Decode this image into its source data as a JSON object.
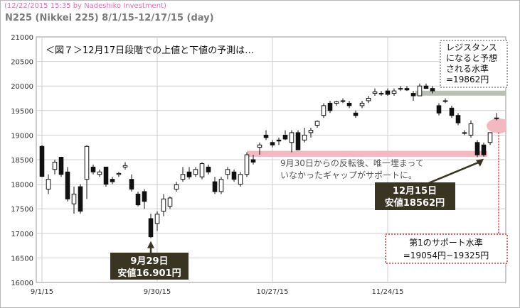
{
  "header": {
    "timestamp_line": "(12/22/2015 15:35 by Nadeshiko Investment)",
    "title_line": "N225 (Nikkei 225)  8/1/15-12/17/15 (day)"
  },
  "annotations": {
    "figure_title": "＜図７＞12月17日段階での上値と下値の予測は…",
    "resistance_line1": "レジスタンス",
    "resistance_line2": "になると予想",
    "resistance_line3": "される水準",
    "resistance_line4": "=19862円",
    "gap_note_line1": "9月30日からの反転後、唯一埋まって",
    "gap_note_line2": "いなかったギャップがサポートに。",
    "dec15_line1": "12月15日",
    "dec15_line2": "安値18562円",
    "sep29_line1": "9月29日",
    "sep29_line2": "安値16.901円",
    "support_line1": "第1のサポート水準",
    "support_line2": "=19054円−19325円"
  },
  "colors": {
    "up_candle": "#ffffff",
    "down_candle": "#111111",
    "resistance_band": "#b9bfb2",
    "gap_band": "#f3b8c0",
    "support_highlight": "#f3b8c0",
    "callout_box": "#3a3522",
    "dotted_red": "#e0303a"
  },
  "chart_data": {
    "type": "candlestick",
    "title": "N225 (Nikkei 225)  8/1/15-12/17/15 (day)",
    "ylim": [
      16000,
      21000
    ],
    "yticks": [
      16000,
      16500,
      17000,
      17500,
      18000,
      18500,
      19000,
      19500,
      20000,
      20500,
      21000
    ],
    "xtick_labels": [
      "9/1/15",
      "9/30/15",
      "10/27/15",
      "11/24/15"
    ],
    "grid": true,
    "levels": {
      "resistance": 19862,
      "gap_support_top": 18680,
      "gap_support_bottom": 18560,
      "support_low": 19054,
      "support_high": 19325,
      "low_sep29": 16901,
      "low_dec15": 18562
    },
    "candles": [
      {
        "date": "9/1",
        "o": 18770,
        "h": 18800,
        "l": 18150,
        "c": 18160
      },
      {
        "date": "9/2",
        "o": 17900,
        "h": 18200,
        "l": 17800,
        "c": 18100
      },
      {
        "date": "9/3",
        "o": 18300,
        "h": 18500,
        "l": 18200,
        "c": 18450
      },
      {
        "date": "9/4",
        "o": 18550,
        "h": 18560,
        "l": 18150,
        "c": 18200
      },
      {
        "date": "9/7",
        "o": 18250,
        "h": 18350,
        "l": 17650,
        "c": 17700
      },
      {
        "date": "9/8",
        "o": 17600,
        "h": 17950,
        "l": 17400,
        "c": 17800
      },
      {
        "date": "9/9",
        "o": 17950,
        "h": 18000,
        "l": 17400,
        "c": 17450
      },
      {
        "date": "9/10",
        "o": 18100,
        "h": 18800,
        "l": 17700,
        "c": 18770
      },
      {
        "date": "9/11",
        "o": 18350,
        "h": 18400,
        "l": 18200,
        "c": 18250
      },
      {
        "date": "9/14",
        "o": 18200,
        "h": 18300,
        "l": 18150,
        "c": 18250
      },
      {
        "date": "9/15",
        "o": 18350,
        "h": 18350,
        "l": 17950,
        "c": 18000
      },
      {
        "date": "9/16",
        "o": 18100,
        "h": 18150,
        "l": 18000,
        "c": 18050
      },
      {
        "date": "9/17",
        "o": 18200,
        "h": 18250,
        "l": 18150,
        "c": 18220
      },
      {
        "date": "9/18",
        "o": 18350,
        "h": 18450,
        "l": 18300,
        "c": 18380
      },
      {
        "date": "9/24",
        "o": 18100,
        "h": 18200,
        "l": 17850,
        "c": 17900
      },
      {
        "date": "9/25",
        "o": 17800,
        "h": 17850,
        "l": 17550,
        "c": 17580
      },
      {
        "date": "9/28",
        "o": 17850,
        "h": 17900,
        "l": 17500,
        "c": 17650
      },
      {
        "date": "9/29",
        "o": 17300,
        "h": 17400,
        "l": 16901,
        "c": 16930
      },
      {
        "date": "9/30",
        "o": 17200,
        "h": 17450,
        "l": 17050,
        "c": 17390
      },
      {
        "date": "10/1",
        "o": 17450,
        "h": 17800,
        "l": 17350,
        "c": 17700
      },
      {
        "date": "10/2",
        "o": 17550,
        "h": 17750,
        "l": 17500,
        "c": 17720
      },
      {
        "date": "10/5",
        "o": 17900,
        "h": 18050,
        "l": 17850,
        "c": 17990
      },
      {
        "date": "10/6",
        "o": 18100,
        "h": 18350,
        "l": 18050,
        "c": 18200
      },
      {
        "date": "10/7",
        "o": 18250,
        "h": 18350,
        "l": 18100,
        "c": 18150
      },
      {
        "date": "10/8",
        "o": 18200,
        "h": 18350,
        "l": 18150,
        "c": 18300
      },
      {
        "date": "10/9",
        "o": 18150,
        "h": 18450,
        "l": 18100,
        "c": 18420
      },
      {
        "date": "10/13",
        "o": 18350,
        "h": 18400,
        "l": 18200,
        "c": 18250
      },
      {
        "date": "10/14",
        "o": 18050,
        "h": 18150,
        "l": 17800,
        "c": 17850
      },
      {
        "date": "10/15",
        "o": 17850,
        "h": 18150,
        "l": 17800,
        "c": 18100
      },
      {
        "date": "10/16",
        "o": 18200,
        "h": 18350,
        "l": 18100,
        "c": 18300
      },
      {
        "date": "10/19",
        "o": 18250,
        "h": 18300,
        "l": 18050,
        "c": 18100
      },
      {
        "date": "10/20",
        "o": 18000,
        "h": 18250,
        "l": 17950,
        "c": 18200
      },
      {
        "date": "10/21",
        "o": 18200,
        "h": 18650,
        "l": 18150,
        "c": 18600
      },
      {
        "date": "10/22",
        "o": 18500,
        "h": 18600,
        "l": 18400,
        "c": 18450
      },
      {
        "date": "10/23",
        "o": 18750,
        "h": 18850,
        "l": 18600,
        "c": 18800
      },
      {
        "date": "10/26",
        "o": 19000,
        "h": 19100,
        "l": 18900,
        "c": 18950
      },
      {
        "date": "10/27",
        "o": 18850,
        "h": 18900,
        "l": 18750,
        "c": 18800
      },
      {
        "date": "10/28",
        "o": 18900,
        "h": 18950,
        "l": 18800,
        "c": 18880
      },
      {
        "date": "10/29",
        "o": 19000,
        "h": 19100,
        "l": 18900,
        "c": 18920
      },
      {
        "date": "10/30",
        "o": 18850,
        "h": 19100,
        "l": 18650,
        "c": 19050
      },
      {
        "date": "11/2",
        "o": 19050,
        "h": 19100,
        "l": 18700,
        "c": 18700
      },
      {
        "date": "11/4",
        "o": 18900,
        "h": 19150,
        "l": 18850,
        "c": 19000
      },
      {
        "date": "11/5",
        "o": 19050,
        "h": 19150,
        "l": 18950,
        "c": 19100
      },
      {
        "date": "11/6",
        "o": 19200,
        "h": 19300,
        "l": 19150,
        "c": 19280
      },
      {
        "date": "11/9",
        "o": 19400,
        "h": 19650,
        "l": 19350,
        "c": 19600
      },
      {
        "date": "11/10",
        "o": 19650,
        "h": 19700,
        "l": 19450,
        "c": 19500
      },
      {
        "date": "11/11",
        "o": 19650,
        "h": 19700,
        "l": 19600,
        "c": 19680
      },
      {
        "date": "11/12",
        "o": 19700,
        "h": 19750,
        "l": 19650,
        "c": 19700
      },
      {
        "date": "11/13",
        "o": 19650,
        "h": 19700,
        "l": 19550,
        "c": 19600
      },
      {
        "date": "11/16",
        "o": 19450,
        "h": 19500,
        "l": 19350,
        "c": 19400
      },
      {
        "date": "11/17",
        "o": 19600,
        "h": 19700,
        "l": 19550,
        "c": 19650
      },
      {
        "date": "11/18",
        "o": 19700,
        "h": 19800,
        "l": 19650,
        "c": 19750
      },
      {
        "date": "11/19",
        "o": 19850,
        "h": 19950,
        "l": 19800,
        "c": 19880
      },
      {
        "date": "11/20",
        "o": 19850,
        "h": 19900,
        "l": 19800,
        "c": 19850
      },
      {
        "date": "11/24",
        "o": 19900,
        "h": 19950,
        "l": 19800,
        "c": 19830
      },
      {
        "date": "11/25",
        "o": 19850,
        "h": 19950,
        "l": 19800,
        "c": 19900
      },
      {
        "date": "11/26",
        "o": 19950,
        "h": 20000,
        "l": 19900,
        "c": 19950
      },
      {
        "date": "11/27",
        "o": 19950,
        "h": 20000,
        "l": 19900,
        "c": 19920
      },
      {
        "date": "11/30",
        "o": 19850,
        "h": 19900,
        "l": 19700,
        "c": 19800
      },
      {
        "date": "12/1",
        "o": 19800,
        "h": 20050,
        "l": 19800,
        "c": 20000
      },
      {
        "date": "12/2",
        "o": 20000,
        "h": 20050,
        "l": 19950,
        "c": 19950
      },
      {
        "date": "12/3",
        "o": 19950,
        "h": 20000,
        "l": 19850,
        "c": 19900
      },
      {
        "date": "12/4",
        "o": 19600,
        "h": 19650,
        "l": 19400,
        "c": 19450
      },
      {
        "date": "12/7",
        "o": 19700,
        "h": 19750,
        "l": 19650,
        "c": 19700
      },
      {
        "date": "12/8",
        "o": 19550,
        "h": 19600,
        "l": 19350,
        "c": 19400
      },
      {
        "date": "12/9",
        "o": 19400,
        "h": 19450,
        "l": 19200,
        "c": 19250
      },
      {
        "date": "12/10",
        "o": 19050,
        "h": 19100,
        "l": 19000,
        "c": 19050
      },
      {
        "date": "12/11",
        "o": 19000,
        "h": 19300,
        "l": 18950,
        "c": 19230
      },
      {
        "date": "12/14",
        "o": 18850,
        "h": 18900,
        "l": 18550,
        "c": 18600
      },
      {
        "date": "12/15",
        "o": 18800,
        "h": 18850,
        "l": 18562,
        "c": 18600
      },
      {
        "date": "12/16",
        "o": 18850,
        "h": 19050,
        "l": 18800,
        "c": 19050
      },
      {
        "date": "12/17",
        "o": 19350,
        "h": 19450,
        "l": 19300,
        "c": 19350
      }
    ]
  }
}
